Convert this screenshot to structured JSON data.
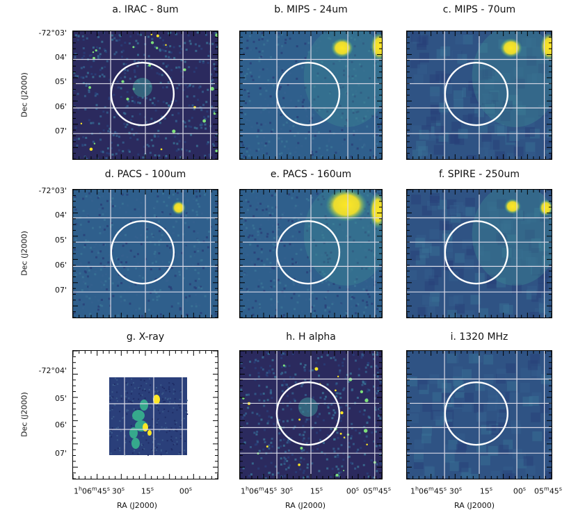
{
  "figure": {
    "panels": [
      {
        "title": "a. IRAC - 8um",
        "tone": "dark",
        "sources": "stars",
        "circle": true
      },
      {
        "title": "b. MIPS - 24um",
        "tone": "mid",
        "sources": "blobs",
        "circle": true
      },
      {
        "title": "c. MIPS - 70um",
        "tone": "smooth",
        "sources": "blobs",
        "circle": true
      },
      {
        "title": "d. PACS - 100um",
        "tone": "mid",
        "sources": "blob1",
        "circle": true
      },
      {
        "title": "e. PACS - 160um",
        "tone": "mid",
        "sources": "corner",
        "circle": true
      },
      {
        "title": "f. SPIRE - 250um",
        "tone": "smooth",
        "sources": "blobs2",
        "circle": true
      },
      {
        "title": "g. X-ray",
        "tone": "xray",
        "sources": "xray",
        "circle": false
      },
      {
        "title": "h. H alpha",
        "tone": "dark",
        "sources": "stars",
        "circle": true
      },
      {
        "title": "i. 1320 MHz",
        "tone": "smooth",
        "sources": "none",
        "circle": true
      }
    ],
    "dec_labels_rows12": [
      "-72°03'",
      "04'",
      "05'",
      "06'",
      "07'"
    ],
    "dec_labels_row3": [
      "-72°04'",
      "05'",
      "06'",
      "07'"
    ],
    "dec_axis_title": "Dec (J2000)",
    "ra_labels_g": [
      "1h06m45s",
      "30s",
      "15s",
      "00s"
    ],
    "ra_labels_hi": [
      "1h06m45s",
      "30s",
      "15s",
      "00s",
      "05m45s"
    ],
    "ra_axis_title": "RA (J2000)",
    "colors": {
      "low": "#2c1c5a",
      "mid": "#2f6b8e",
      "high": "#3fb98a",
      "peak": "#fde725",
      "grid": "#d9d9e6"
    }
  }
}
